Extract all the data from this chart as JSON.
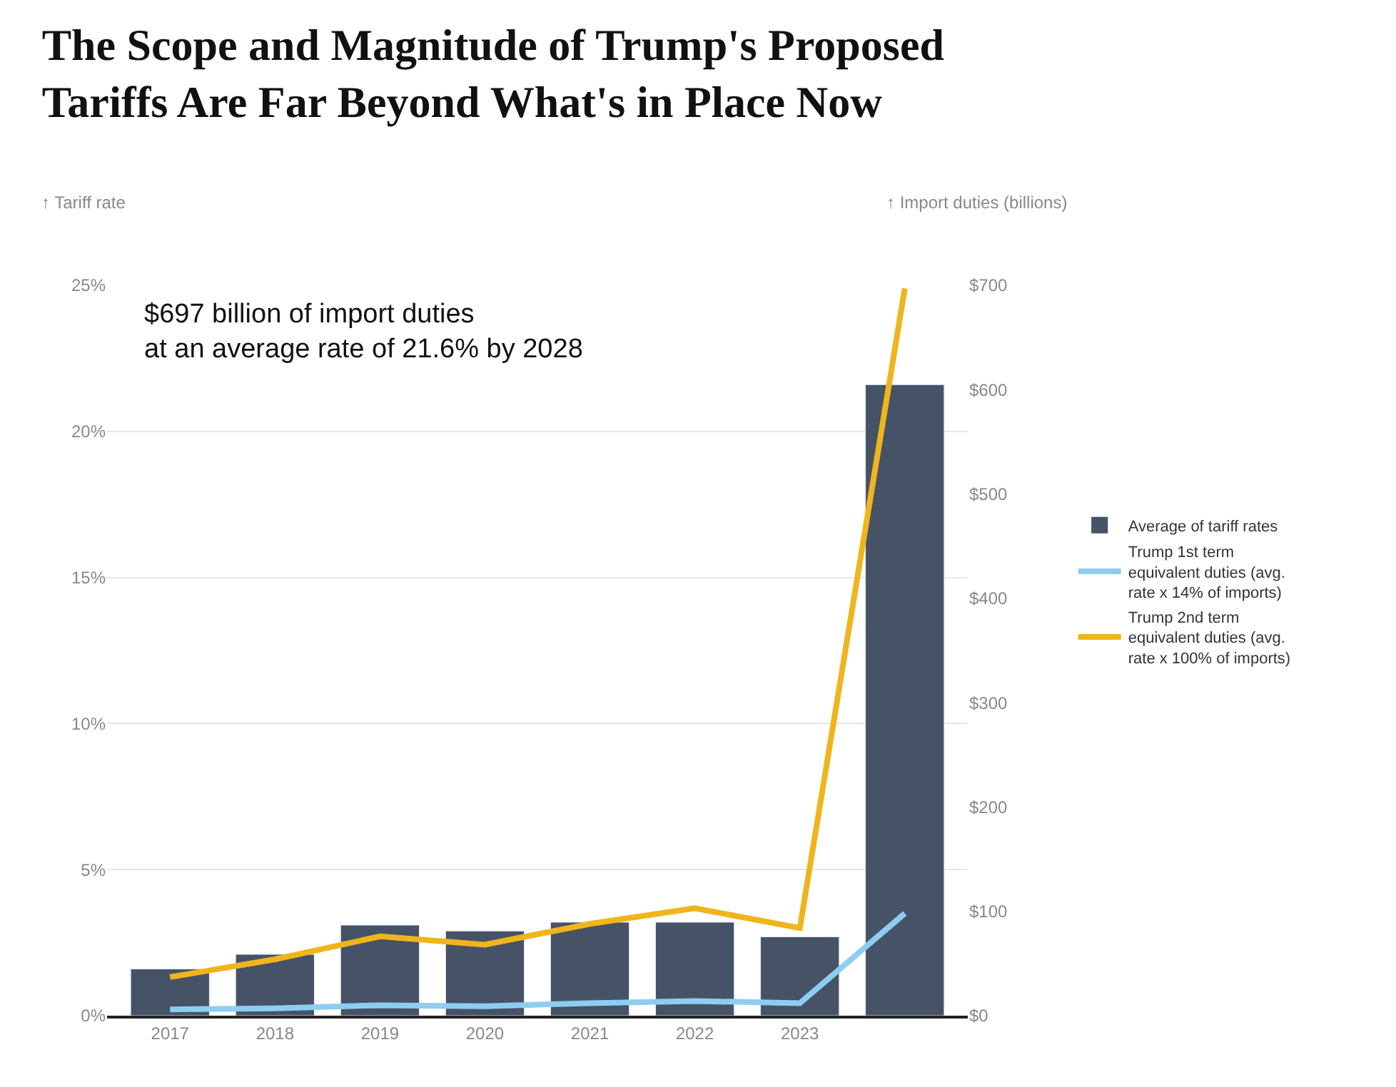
{
  "chart_data": {
    "type": "bar",
    "title": "The Scope and Magnitude of Trump's Proposed\nTariffs Are Far Beyond What's in Place Now",
    "ylabel": "↑ Tariff rate",
    "y2label": "↑ Import duties (billions)",
    "categories": [
      "2017",
      "2018",
      "2019",
      "2020",
      "2021",
      "2022",
      "2023",
      null
    ],
    "series": [
      {
        "name": "Average of tariff rates",
        "color": "#465367",
        "values": [
          1.6,
          2.1,
          3.1,
          2.9,
          3.2,
          3.2,
          2.7,
          21.6
        ]
      },
      {
        "name": "Trump 1st term equivalent duties (avg. rate x 14% of imports)",
        "type": "line",
        "axis": "y2",
        "color": "#8ecdf2",
        "values": [
          6,
          7,
          10,
          9,
          12,
          14,
          12,
          98
        ]
      },
      {
        "name": "Trump 2nd term equivalent duties (avg. rate x 100% of imports)",
        "type": "line",
        "axis": "y2",
        "color": "#f0b51c",
        "values": [
          37,
          54,
          76,
          68,
          88,
          103,
          84,
          697
        ]
      }
    ],
    "ylim": [
      0,
      25
    ],
    "yticks": [
      {
        "value": 0,
        "label": "0%"
      },
      {
        "value": 5,
        "label": "5%"
      },
      {
        "value": 10,
        "label": "10%"
      },
      {
        "value": 15,
        "label": "15%"
      },
      {
        "value": 20,
        "label": "20%"
      },
      {
        "value": 25,
        "label": "25%"
      }
    ],
    "y2lim": [
      0,
      700
    ],
    "y2ticks": [
      {
        "value": 0,
        "label": "$0"
      },
      {
        "value": 100,
        "label": "$100"
      },
      {
        "value": 200,
        "label": "$200"
      },
      {
        "value": 300,
        "label": "$300"
      },
      {
        "value": 400,
        "label": "$400"
      },
      {
        "value": 500,
        "label": "$500"
      },
      {
        "value": 600,
        "label": "$600"
      },
      {
        "value": 700,
        "label": "$700"
      }
    ],
    "annotations": [
      "$697 billion of import duties\nat an average rate of 21.6% by 2028"
    ],
    "grid": "y",
    "legend": "right",
    "marker": "none",
    "line_style": "solid"
  }
}
